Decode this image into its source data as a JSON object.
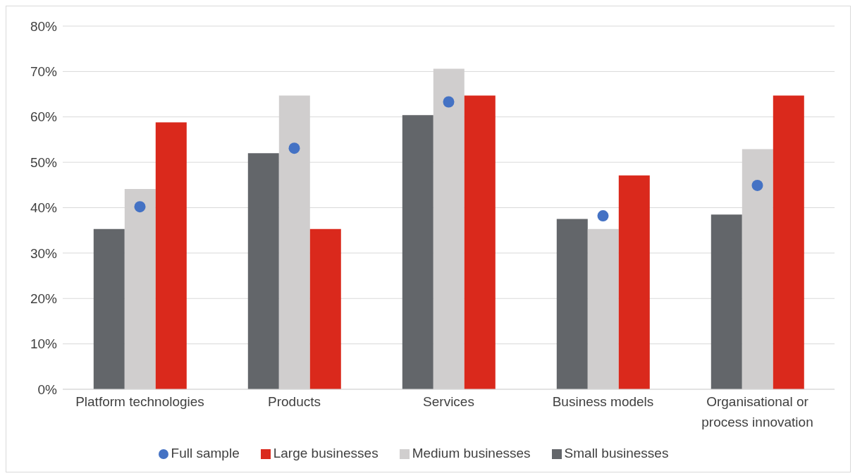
{
  "chart_data": {
    "type": "bar",
    "categories": [
      "Platform technologies",
      "Products",
      "Services",
      "Business models",
      "Organisational or process innovation"
    ],
    "series": [
      {
        "name": "Small businesses",
        "color": "#63666a",
        "values": [
          35.3,
          52.0,
          60.4,
          37.5,
          38.5
        ]
      },
      {
        "name": "Medium businesses",
        "color": "#d0cece",
        "values": [
          44.1,
          64.7,
          70.6,
          35.3,
          52.9
        ]
      },
      {
        "name": "Large businesses",
        "color": "#da291c",
        "values": [
          58.8,
          35.3,
          64.7,
          47.1,
          64.7
        ]
      },
      {
        "name": "Full sample",
        "type": "scatter",
        "marker": "circle",
        "color": "#4472c4",
        "values": [
          40.2,
          53.1,
          63.3,
          38.2,
          44.9
        ]
      }
    ],
    "ylim": [
      0,
      80
    ],
    "yticks": [
      {
        "value": 0,
        "label": "0%"
      },
      {
        "value": 10,
        "label": "10%"
      },
      {
        "value": 20,
        "label": "20%"
      },
      {
        "value": 30,
        "label": "30%"
      },
      {
        "value": 40,
        "label": "40%"
      },
      {
        "value": 50,
        "label": "50%"
      },
      {
        "value": 60,
        "label": "60%"
      },
      {
        "value": 70,
        "label": "70%"
      },
      {
        "value": 80,
        "label": "80%"
      }
    ],
    "grid": "y",
    "legend": "bottom"
  }
}
